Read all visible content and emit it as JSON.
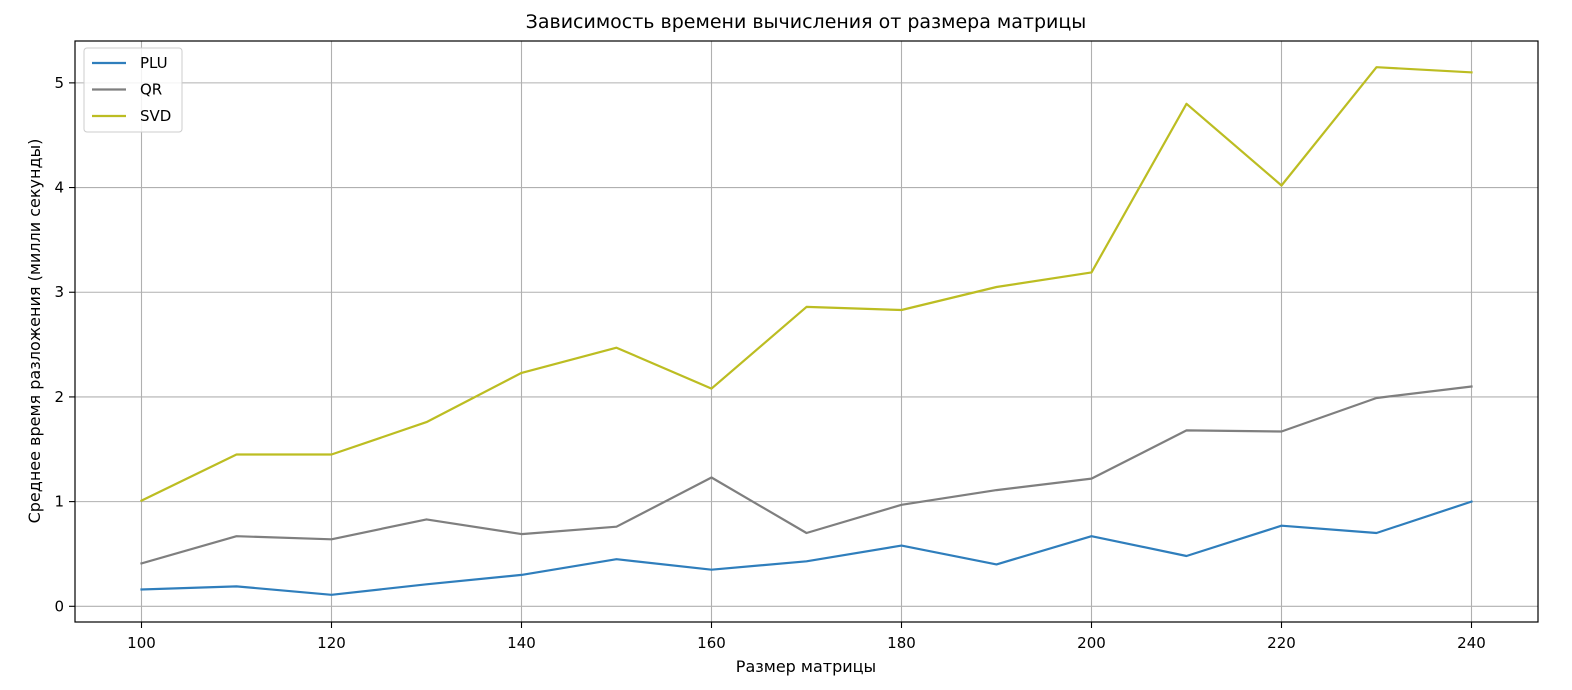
{
  "chart_data": {
    "type": "line",
    "title": "Зависимость времени вычисления от размера матрицы",
    "xlabel": "Размер матрицы",
    "ylabel": "Среднее время разложения (милли секунды)",
    "x": [
      100,
      110,
      120,
      130,
      140,
      150,
      160,
      170,
      180,
      190,
      200,
      210,
      220,
      230,
      240
    ],
    "xticks": [
      100,
      120,
      140,
      160,
      180,
      200,
      220,
      240
    ],
    "yticks": [
      0,
      1,
      2,
      3,
      4,
      5
    ],
    "xlim": [
      93,
      247
    ],
    "ylim": [
      -0.15,
      5.4
    ],
    "grid": true,
    "legend_position": "upper-left",
    "series": [
      {
        "name": "PLU",
        "color": "#2f7ebc",
        "values": [
          0.16,
          0.19,
          0.11,
          0.21,
          0.3,
          0.45,
          0.35,
          0.43,
          0.58,
          0.4,
          0.67,
          0.48,
          0.77,
          0.7,
          1.0
        ]
      },
      {
        "name": "QR",
        "color": "#7f7f7f",
        "values": [
          0.41,
          0.67,
          0.64,
          0.83,
          0.69,
          0.76,
          1.23,
          0.7,
          0.97,
          1.11,
          1.22,
          1.68,
          1.67,
          1.99,
          2.1
        ]
      },
      {
        "name": "SVD",
        "color": "#bcbd22",
        "values": [
          1.01,
          1.45,
          1.45,
          1.76,
          2.23,
          2.47,
          2.08,
          2.86,
          2.83,
          3.05,
          3.19,
          4.8,
          4.02,
          5.15,
          5.1
        ]
      }
    ]
  }
}
